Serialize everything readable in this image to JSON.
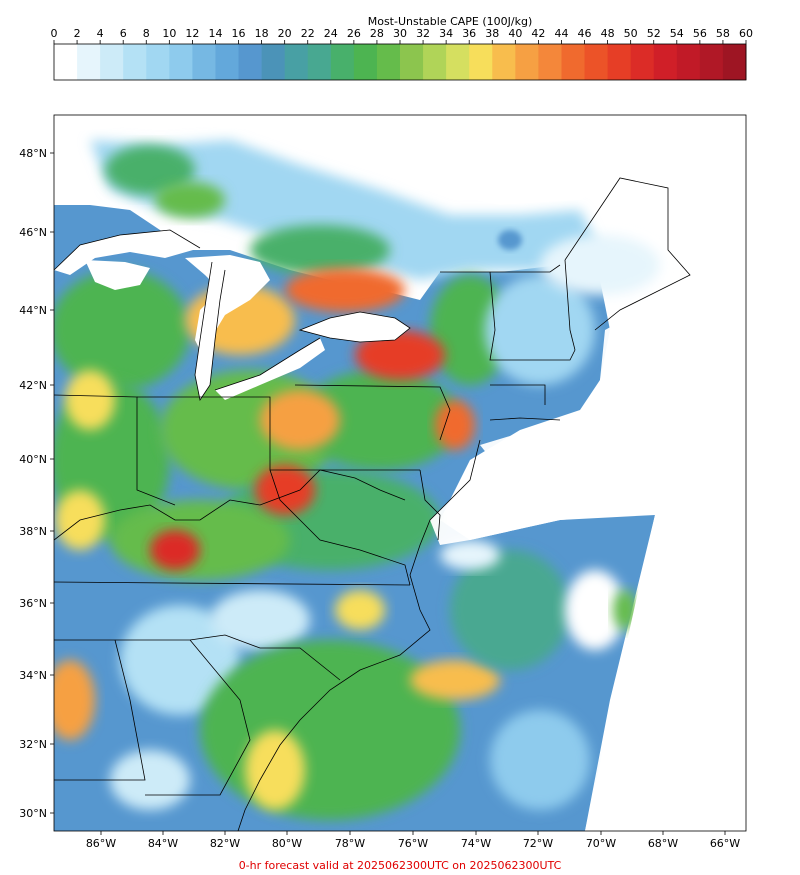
{
  "colorbar": {
    "title": "Most-Unstable CAPE (100J/kg)",
    "ticks": [
      "0",
      "2",
      "4",
      "6",
      "8",
      "10",
      "12",
      "14",
      "16",
      "18",
      "20",
      "22",
      "24",
      "26",
      "28",
      "30",
      "32",
      "34",
      "36",
      "38",
      "40",
      "42",
      "44",
      "46",
      "48",
      "50",
      "52",
      "54",
      "56",
      "58",
      "60"
    ],
    "colors": [
      "#ffffff",
      "#e6f5fc",
      "#cdebf8",
      "#b4e1f5",
      "#a1d7f2",
      "#8ecbed",
      "#76b8e3",
      "#63a8db",
      "#5697cf",
      "#4b93b8",
      "#48a0a4",
      "#48a891",
      "#48b06b",
      "#4db451",
      "#65bc4b",
      "#8cc54e",
      "#b0d458",
      "#d5df60",
      "#f7de5b",
      "#f8bd4d",
      "#f6a043",
      "#f4873a",
      "#f06a2e",
      "#ec5328",
      "#e63e26",
      "#dc2c27",
      "#d01f28",
      "#c11a27",
      "#b01826",
      "#9e1523"
    ]
  },
  "map": {
    "lat_labels": [
      "48°N",
      "46°N",
      "44°N",
      "42°N",
      "40°N",
      "38°N",
      "36°N",
      "34°N",
      "32°N",
      "30°N"
    ],
    "lon_labels": [
      "86°W",
      "84°W",
      "82°W",
      "80°W",
      "78°W",
      "76°W",
      "74°W",
      "72°W",
      "70°W",
      "68°W",
      "66°W"
    ]
  },
  "footer": "0-hr forecast valid at 2025062300UTC on 2025062300UTC"
}
